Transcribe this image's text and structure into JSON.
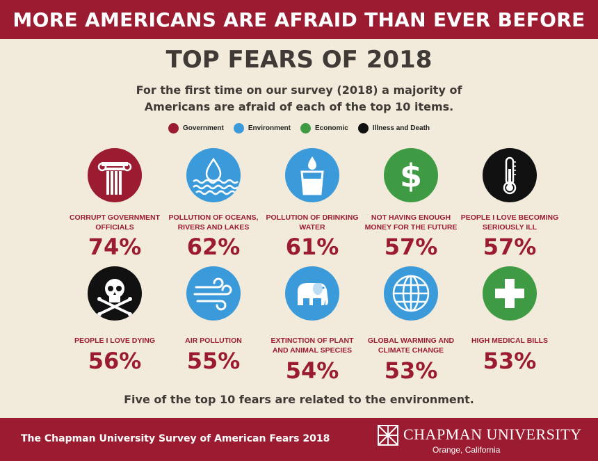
{
  "banner": {
    "title": "MORE AMERICANS ARE AFRAID THAN EVER BEFORE"
  },
  "heading": {
    "title": "TOP FEARS OF 2018",
    "subtitle": "For the first time on our survey (2018) a majority of Americans are afraid of each of the top 10 items."
  },
  "legend": [
    {
      "label": "Government",
      "color": "#9b1c31"
    },
    {
      "label": "Environment",
      "color": "#3b9ad9"
    },
    {
      "label": "Economic",
      "color": "#3f9b43"
    },
    {
      "label": "Illness and Death",
      "color": "#111111"
    }
  ],
  "fears": [
    {
      "label": "Corrupt Government Officials",
      "percent": "74%",
      "category": "Government",
      "icon": "column-icon"
    },
    {
      "label": "Pollution of Oceans, Rivers and Lakes",
      "percent": "62%",
      "category": "Environment",
      "icon": "water-drop-waves-icon"
    },
    {
      "label": "Pollution of Drinking Water",
      "percent": "61%",
      "category": "Environment",
      "icon": "water-glass-icon"
    },
    {
      "label": "Not Having Enough Money for the Future",
      "percent": "57%",
      "category": "Economic",
      "icon": "dollar-icon"
    },
    {
      "label": "People I Love Becoming Seriously Ill",
      "percent": "57%",
      "category": "Illness and Death",
      "icon": "thermometer-icon"
    },
    {
      "label": "People I Love Dying",
      "percent": "56%",
      "category": "Illness and Death",
      "icon": "skull-crossbones-icon"
    },
    {
      "label": "Air Pollution",
      "percent": "55%",
      "category": "Environment",
      "icon": "wind-icon"
    },
    {
      "label": "Extinction of Plant and Animal Species",
      "percent": "54%",
      "category": "Environment",
      "icon": "elephant-icon"
    },
    {
      "label": "Global Warming and Climate Change",
      "percent": "53%",
      "category": "Environment",
      "icon": "globe-icon"
    },
    {
      "label": "High Medical Bills",
      "percent": "53%",
      "category": "Economic",
      "icon": "medical-cross-icon"
    }
  ],
  "footnote": "Five of the top 10 fears are related to the environment.",
  "footer": {
    "survey": "The Chapman University Survey of American Fears 2018",
    "university": "CHAPMAN UNIVERSITY",
    "location": "Orange, California"
  }
}
